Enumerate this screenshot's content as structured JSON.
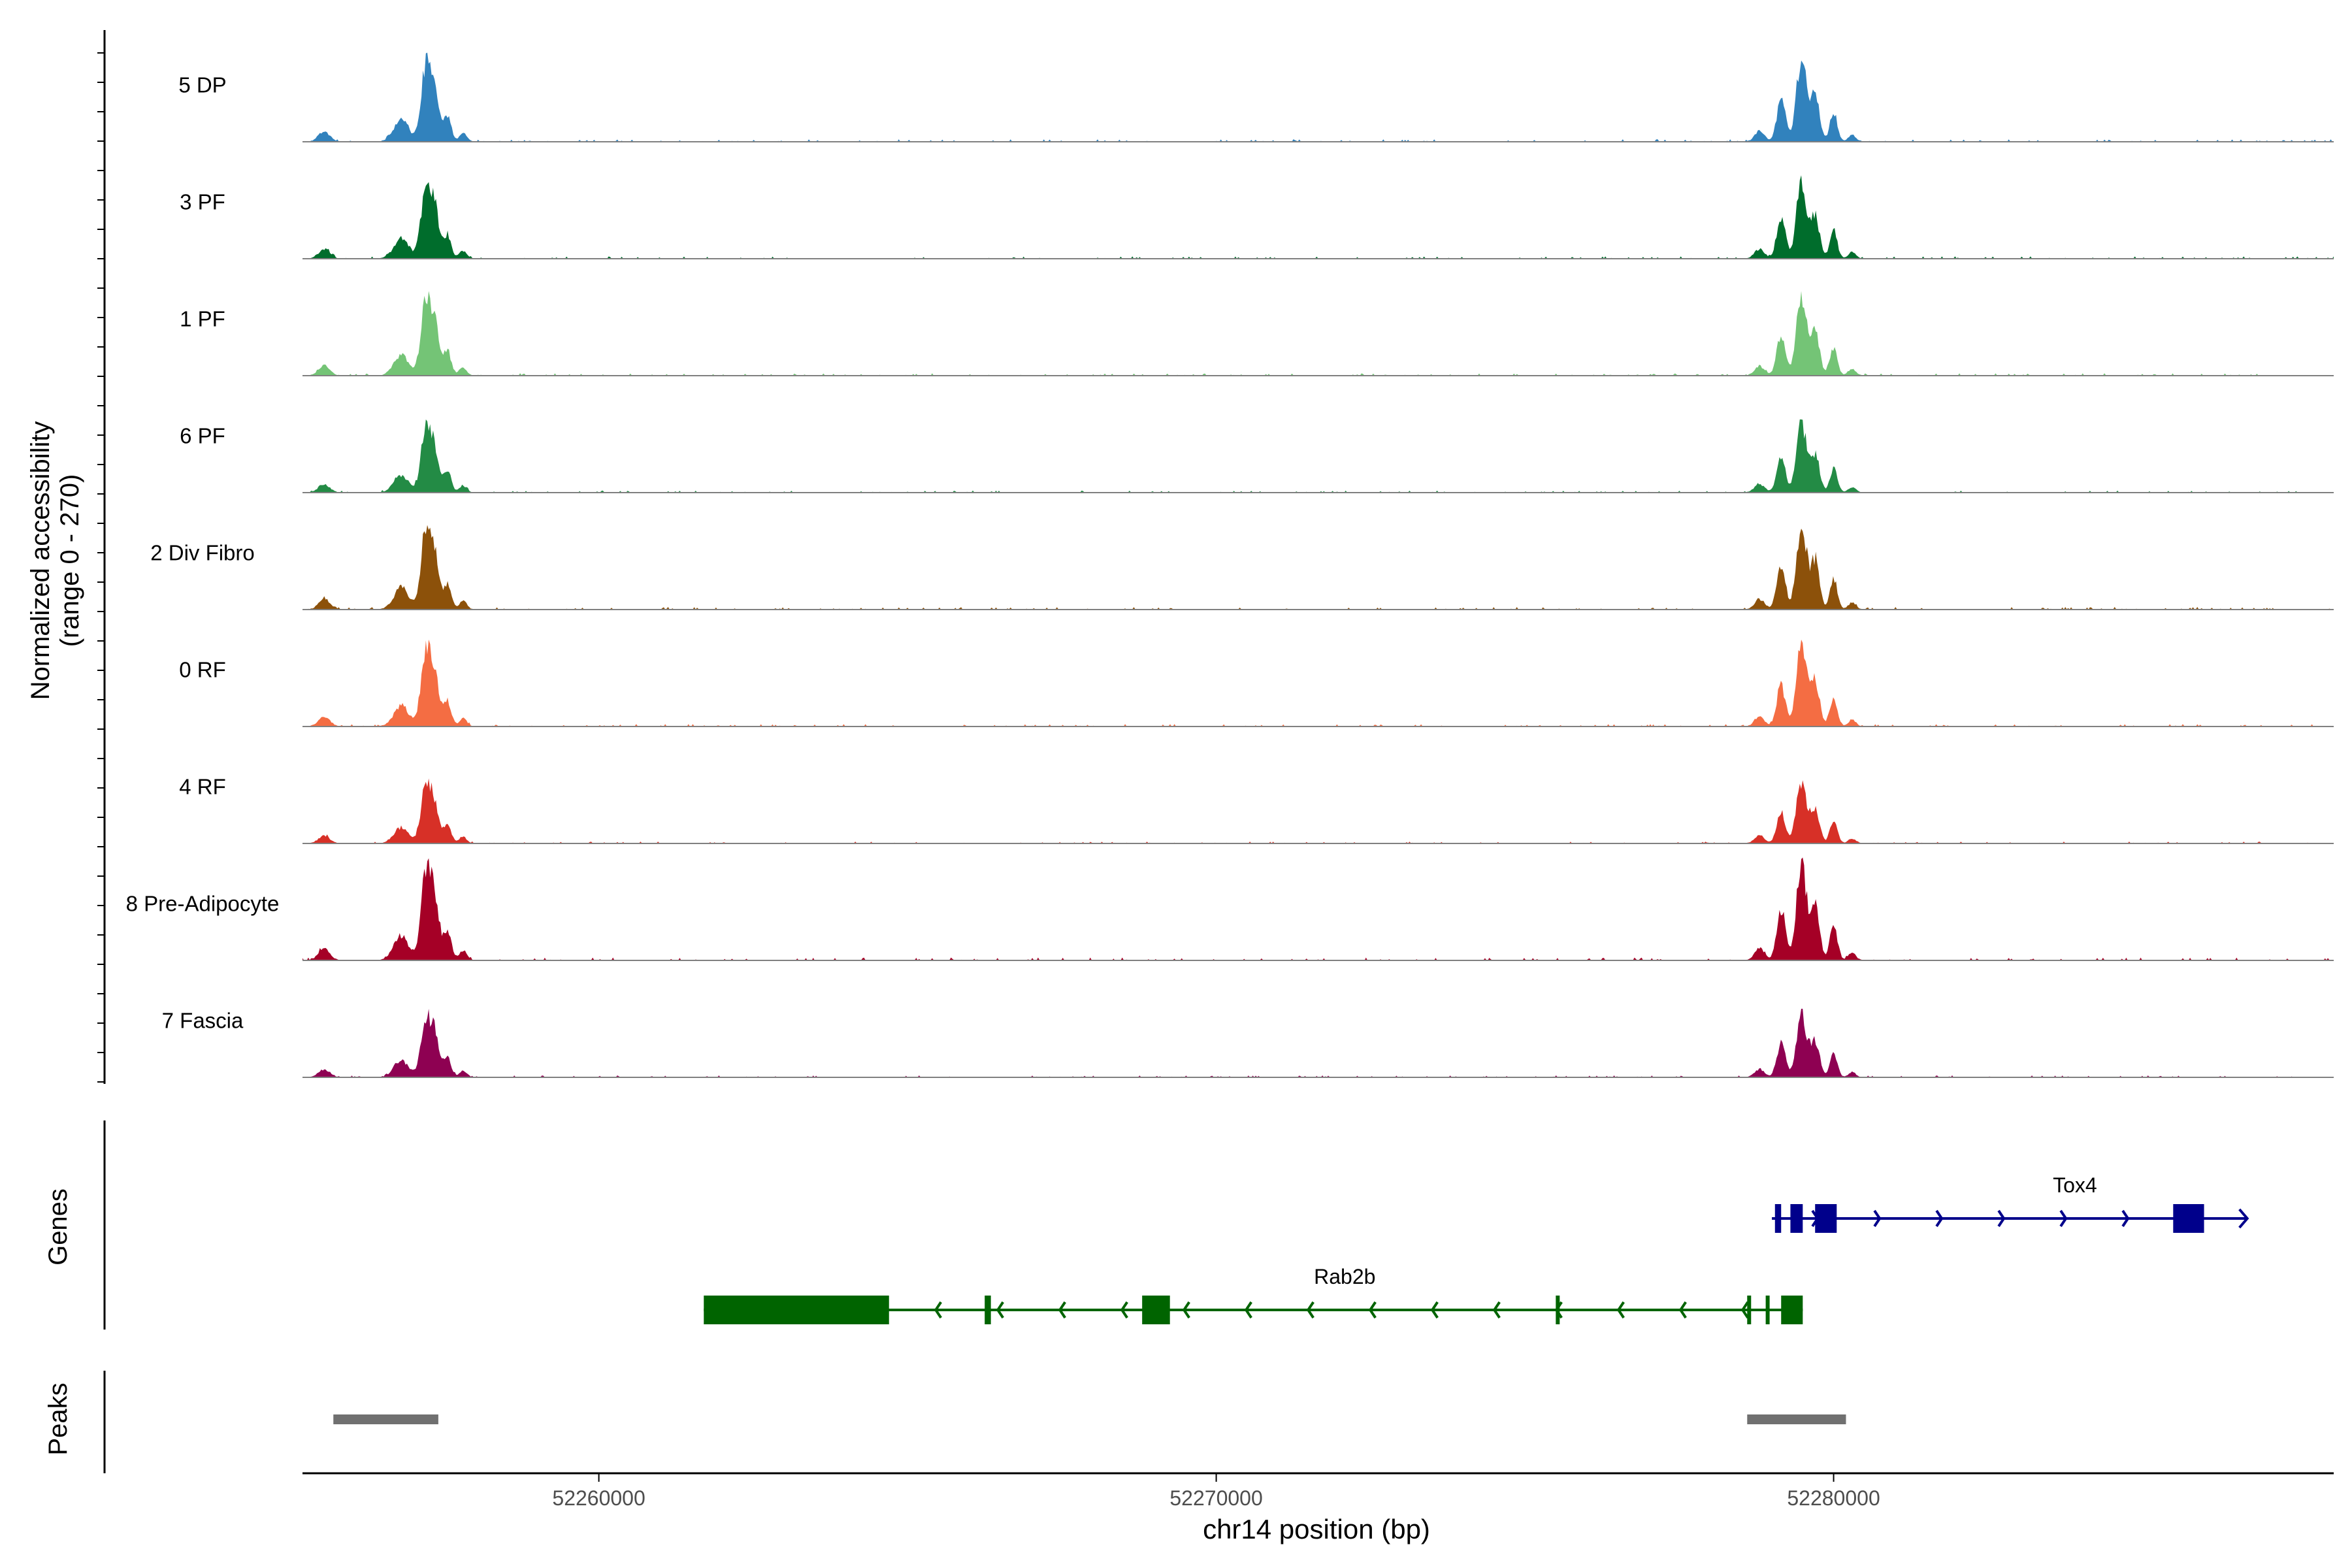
{
  "chart_data": {
    "type": "area",
    "chromosome": "chr14",
    "x_axis": {
      "label": "chr14 position (bp)",
      "range": [
        52255200,
        52288100
      ],
      "ticks": [
        52260000,
        52270000,
        52280000
      ],
      "tick_labels": [
        "52260000",
        "52270000",
        "52280000"
      ]
    },
    "y_axis": {
      "label_line1": "Normalized accessibility",
      "label_line2": "(range 0 - 270)",
      "range": [
        0,
        270
      ]
    },
    "coverage_tracks": [
      {
        "name": "5 DP",
        "color": "#3182BD",
        "peak_scale": 0.78
      },
      {
        "name": "3 PF",
        "color": "#006D2C",
        "peak_scale": 0.73
      },
      {
        "name": "1 PF",
        "color": "#74C476",
        "peak_scale": 0.74
      },
      {
        "name": "6 PF",
        "color": "#238B45",
        "peak_scale": 0.64
      },
      {
        "name": "2 Div Fibro",
        "color": "#8C510A",
        "peak_scale": 0.8
      },
      {
        "name": "0 RF",
        "color": "#F46D43",
        "peak_scale": 0.76
      },
      {
        "name": "4 RF",
        "color": "#D73027",
        "peak_scale": 0.58
      },
      {
        "name": "8 Pre-Adipocyte",
        "color": "#A50026",
        "peak_scale": 0.9
      },
      {
        "name": "7 Fascia",
        "color": "#8E0152",
        "peak_scale": 0.6
      }
    ],
    "peak_regions": [
      {
        "start": 52255700,
        "end": 52257400
      },
      {
        "start": 52278600,
        "end": 52280200
      }
    ],
    "genes": [
      {
        "name": "Tox4",
        "strand": "+",
        "color": "#00008B",
        "start": 52279000,
        "end": 52286700,
        "exons": [
          [
            52279050,
            52279150
          ],
          [
            52279300,
            52279500
          ],
          [
            52279700,
            52280050
          ],
          [
            52285500,
            52286000
          ]
        ]
      },
      {
        "name": "Rab2b",
        "strand": "-",
        "color": "#006400",
        "start": 52261700,
        "end": 52279500,
        "exons": [
          [
            52261700,
            52264700
          ],
          [
            52266250,
            52266350
          ],
          [
            52268800,
            52269250
          ],
          [
            52275500,
            52275550
          ],
          [
            52278600,
            52278650
          ],
          [
            52278900,
            52278950
          ],
          [
            52279150,
            52279500
          ]
        ]
      }
    ],
    "track_labels": {
      "genes": "Genes",
      "peaks": "Peaks"
    },
    "colors": {
      "peak_bar": "#707070",
      "baseline": "#808080",
      "axis": "#000000"
    }
  }
}
